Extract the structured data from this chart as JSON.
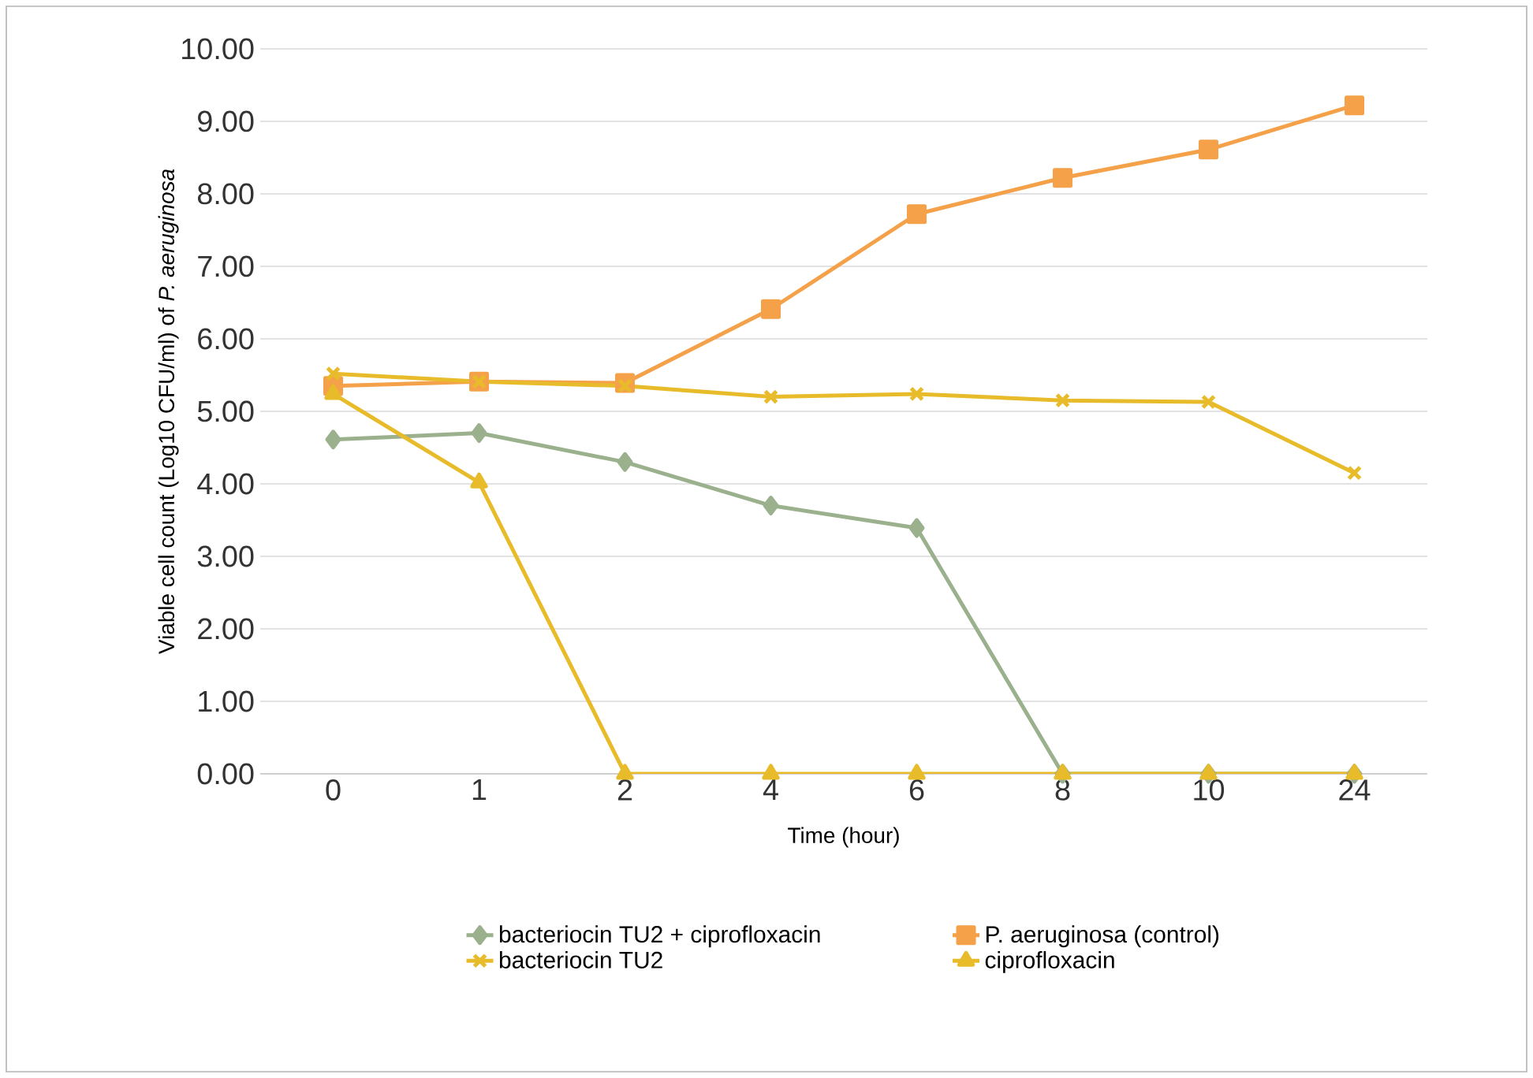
{
  "chart_data": {
    "type": "line",
    "xlabel": "Time (hour)",
    "ylabel": "Viable cell count (Log10 CFU/ml) of *P. aeruginosa*",
    "categories": [
      "0",
      "1",
      "2",
      "4",
      "6",
      "8",
      "10",
      "24"
    ],
    "ylim": [
      0,
      10
    ],
    "yticks": [
      {
        "value": 0,
        "label": "0.00"
      },
      {
        "value": 1,
        "label": "1.00"
      },
      {
        "value": 2,
        "label": "2.00"
      },
      {
        "value": 3,
        "label": "3.00"
      },
      {
        "value": 4,
        "label": "4.00"
      },
      {
        "value": 5,
        "label": "5.00"
      },
      {
        "value": 6,
        "label": "6.00"
      },
      {
        "value": 7,
        "label": "7.00"
      },
      {
        "value": 8,
        "label": "8.00"
      },
      {
        "value": 9,
        "label": "9.00"
      },
      {
        "value": 10,
        "label": "10.00"
      }
    ],
    "grid": "y",
    "legend": "bottom",
    "series": [
      {
        "name": "bacteriocin TU2 + ciprofloxacin",
        "color": "#9bb08c",
        "marker": "diamond",
        "values": [
          4.61,
          4.7,
          4.3,
          3.7,
          3.39,
          0,
          0,
          0
        ]
      },
      {
        "name": "P. aeruginosa (control)",
        "color": "#f4a14a",
        "marker": "square",
        "values": [
          5.35,
          5.41,
          5.39,
          6.41,
          7.72,
          8.22,
          8.61,
          9.22
        ]
      },
      {
        "name": "bacteriocin TU2",
        "color": "#e8bb2a",
        "marker": "cross",
        "values": [
          5.52,
          5.41,
          5.35,
          5.2,
          5.24,
          5.15,
          5.13,
          4.15
        ]
      },
      {
        "name": "ciprofloxacin",
        "color": "#e8bb2a",
        "marker": "triangle",
        "values": [
          5.24,
          4.02,
          0,
          0,
          0,
          0,
          0,
          0
        ]
      }
    ]
  }
}
